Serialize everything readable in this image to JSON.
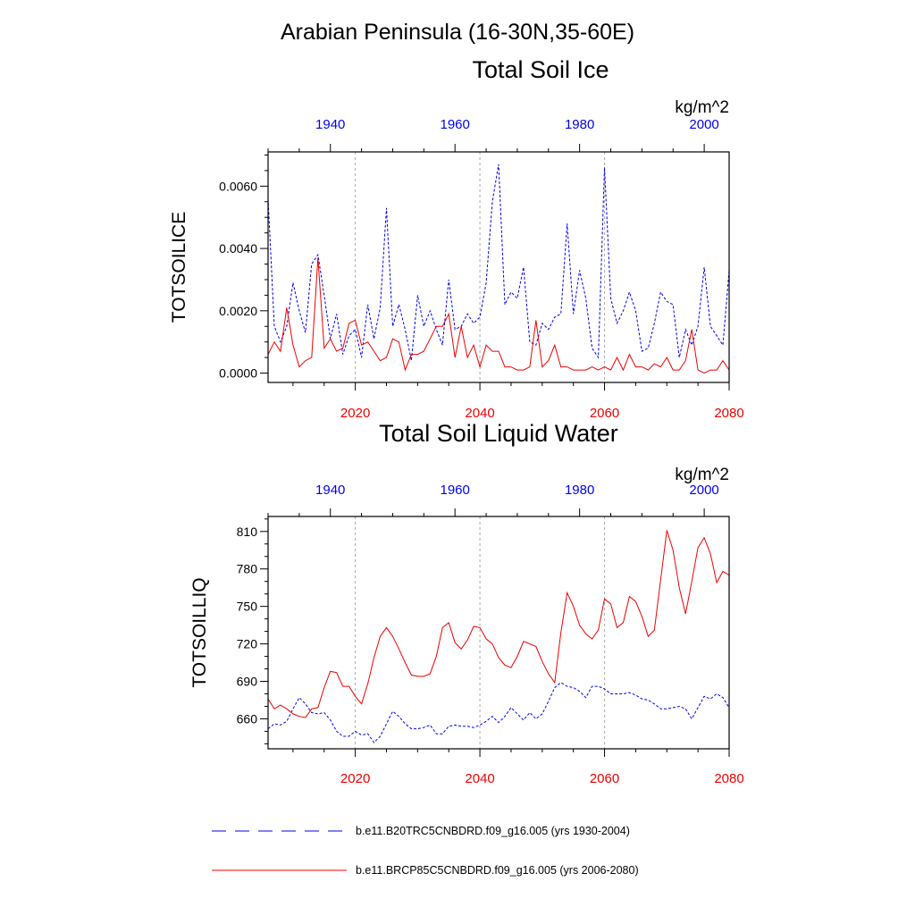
{
  "page": {
    "title_line1": "Arabian Peninsula (16-30N,35-60E)"
  },
  "colors": {
    "historical": "#0000ee",
    "future": "#ee0000",
    "axis": "#000000",
    "grid": "#aaaaaa"
  },
  "chart_data": [
    {
      "type": "line",
      "title": "Total Soil Ice",
      "units": "kg/m^2",
      "ylabel": "TOTSOILICE",
      "ylim": [
        -0.0003,
        0.0071
      ],
      "yticks": [
        0.0,
        0.002,
        0.004,
        0.006
      ],
      "yticklabels": [
        "0.0000",
        "0.0020",
        "0.0040",
        "0.0060"
      ],
      "yminor": [
        0.0005,
        0.001,
        0.0015,
        0.0025,
        0.003,
        0.0035,
        0.0045,
        0.005,
        0.0055,
        0.0065,
        0.007
      ],
      "x_bottom": {
        "range": [
          2006,
          2080
        ],
        "ticks": [
          2020,
          2040,
          2060,
          2080
        ],
        "ticklabels": [
          "2020",
          "2040",
          "2060",
          "2080"
        ]
      },
      "x_top": {
        "range": [
          1930,
          2004
        ],
        "ticks": [
          1940,
          1960,
          1980,
          2000
        ],
        "ticklabels": [
          "1940",
          "1960",
          "1980",
          "2000"
        ]
      },
      "gridlines_x": [
        2020,
        2040,
        2060
      ],
      "series": [
        {
          "name": "b.e11.B20TRC5CNBDRD.f09_g16.005 (yrs 1930-2004)",
          "axis": "top",
          "style": "dashed",
          "start": 1930,
          "values": [
            0.0056,
            0.0015,
            0.001,
            0.0015,
            0.0029,
            0.002,
            0.0013,
            0.0035,
            0.0038,
            0.0025,
            0.0011,
            0.0019,
            0.0006,
            0.0012,
            0.0014,
            0.0005,
            0.0022,
            0.0011,
            0.0021,
            0.0053,
            0.0015,
            0.0022,
            0.0014,
            0.0004,
            0.0025,
            0.0015,
            0.002,
            0.0014,
            0.0009,
            0.003,
            0.0014,
            0.0015,
            0.0019,
            0.0016,
            0.0018,
            0.0029,
            0.0055,
            0.0067,
            0.0022,
            0.0026,
            0.0024,
            0.0034,
            0.001,
            0.0009,
            0.0016,
            0.0014,
            0.0018,
            0.0019,
            0.0048,
            0.0019,
            0.0033,
            0.0024,
            0.0008,
            0.0005,
            0.0066,
            0.0024,
            0.0016,
            0.002,
            0.0026,
            0.002,
            0.0007,
            0.0008,
            0.0016,
            0.0026,
            0.0023,
            0.0022,
            0.0005,
            0.0014,
            0.0009,
            0.0015,
            0.0034,
            0.0015,
            0.0012,
            0.0009,
            0.0033
          ]
        },
        {
          "name": "b.e11.BRCP85C5CNBDRD.f09_g16.005 (yrs 2006-2080)",
          "axis": "bottom",
          "style": "solid",
          "start": 2006,
          "values": [
            0.0006,
            0.001,
            0.0007,
            0.0021,
            0.0009,
            0.0002,
            0.0004,
            0.0005,
            0.0037,
            0.0008,
            0.0011,
            0.0007,
            0.0008,
            0.0016,
            0.0017,
            0.0009,
            0.001,
            0.0007,
            0.0004,
            0.0005,
            0.0011,
            0.001,
            0.0001,
            0.0006,
            0.0006,
            0.0007,
            0.0011,
            0.0015,
            0.0015,
            0.0019,
            0.0005,
            0.0015,
            0.0005,
            0.0009,
            0.0002,
            0.0009,
            0.0007,
            0.0007,
            0.0002,
            0.0002,
            0.0001,
            0.0001,
            0.0002,
            0.0017,
            0.0002,
            0.0004,
            0.0009,
            0.0002,
            0.0002,
            0.0001,
            0.0001,
            0.0001,
            0.0002,
            0.0001,
            0.0002,
            0.0001,
            0.0005,
            0.0001,
            0.0006,
            0.0002,
            0.0002,
            0.0001,
            0.0003,
            0.0002,
            0.0005,
            0.0001,
            0.0001,
            0.0004,
            0.0014,
            0.0001,
            0.0,
            0.0001,
            0.0001,
            0.0004,
            0.0001
          ]
        }
      ]
    },
    {
      "type": "line",
      "title": "Total Soil Liquid Water",
      "units": "kg/m^2",
      "ylabel": "TOTSOILLIQ",
      "ylim": [
        636,
        822
      ],
      "yticks": [
        660,
        690,
        720,
        750,
        780,
        810
      ],
      "yticklabels": [
        "660",
        "690",
        "720",
        "750",
        "780",
        "810"
      ],
      "yminor": [
        640,
        650,
        670,
        680,
        700,
        710,
        730,
        740,
        760,
        770,
        790,
        800,
        820
      ],
      "x_bottom": {
        "range": [
          2006,
          2080
        ],
        "ticks": [
          2020,
          2040,
          2060,
          2080
        ],
        "ticklabels": [
          "2020",
          "2040",
          "2060",
          "2080"
        ]
      },
      "x_top": {
        "range": [
          1930,
          2004
        ],
        "ticks": [
          1940,
          1960,
          1980,
          2000
        ],
        "ticklabels": [
          "1940",
          "1960",
          "1980",
          "2000"
        ]
      },
      "gridlines_x": [
        2020,
        2040,
        2060
      ],
      "series": [
        {
          "name": "b.e11.B20TRC5CNBDRD.f09_g16.005 (yrs 1930-2004)",
          "axis": "top",
          "style": "dashed",
          "start": 1930,
          "values": [
            652,
            656,
            655,
            658,
            668,
            677,
            672,
            665,
            664,
            665,
            659,
            650,
            646,
            646,
            650,
            647,
            648,
            641,
            646,
            656,
            666,
            662,
            656,
            652,
            652,
            653,
            655,
            648,
            648,
            654,
            655,
            654,
            654,
            653,
            655,
            658,
            662,
            657,
            662,
            669,
            664,
            659,
            665,
            660,
            664,
            674,
            685,
            689,
            686,
            685,
            682,
            677,
            686,
            686,
            684,
            680,
            680,
            680,
            681,
            679,
            676,
            675,
            672,
            668,
            668,
            669,
            670,
            668,
            660,
            669,
            678,
            676,
            680,
            677,
            669
          ]
        },
        {
          "name": "b.e11.BRCP85C5CNBDRD.f09_g16.005 (yrs 2006-2080)",
          "axis": "bottom",
          "style": "solid",
          "start": 2006,
          "values": [
            676,
            668,
            671,
            668,
            664,
            662,
            661,
            668,
            669,
            685,
            698,
            697,
            686,
            686,
            678,
            672,
            688,
            709,
            726,
            733,
            726,
            716,
            705,
            695,
            694,
            694,
            696,
            710,
            733,
            737,
            721,
            716,
            723,
            734,
            733,
            724,
            720,
            709,
            703,
            701,
            710,
            722,
            720,
            718,
            706,
            696,
            689,
            729,
            761,
            750,
            735,
            728,
            724,
            731,
            756,
            752,
            733,
            737,
            758,
            754,
            742,
            726,
            731,
            771,
            811,
            795,
            765,
            744,
            770,
            797,
            805,
            792,
            769,
            778,
            775
          ]
        }
      ]
    }
  ],
  "legend": {
    "items": [
      {
        "label": "b.e11.B20TRC5CNBDRD.f09_g16.005 (yrs 1930-2004)",
        "style": "dashed",
        "series": "historical"
      },
      {
        "label": "b.e11.BRCP85C5CNBDRD.f09_g16.005 (yrs 2006-2080)",
        "style": "solid",
        "series": "future"
      }
    ]
  }
}
